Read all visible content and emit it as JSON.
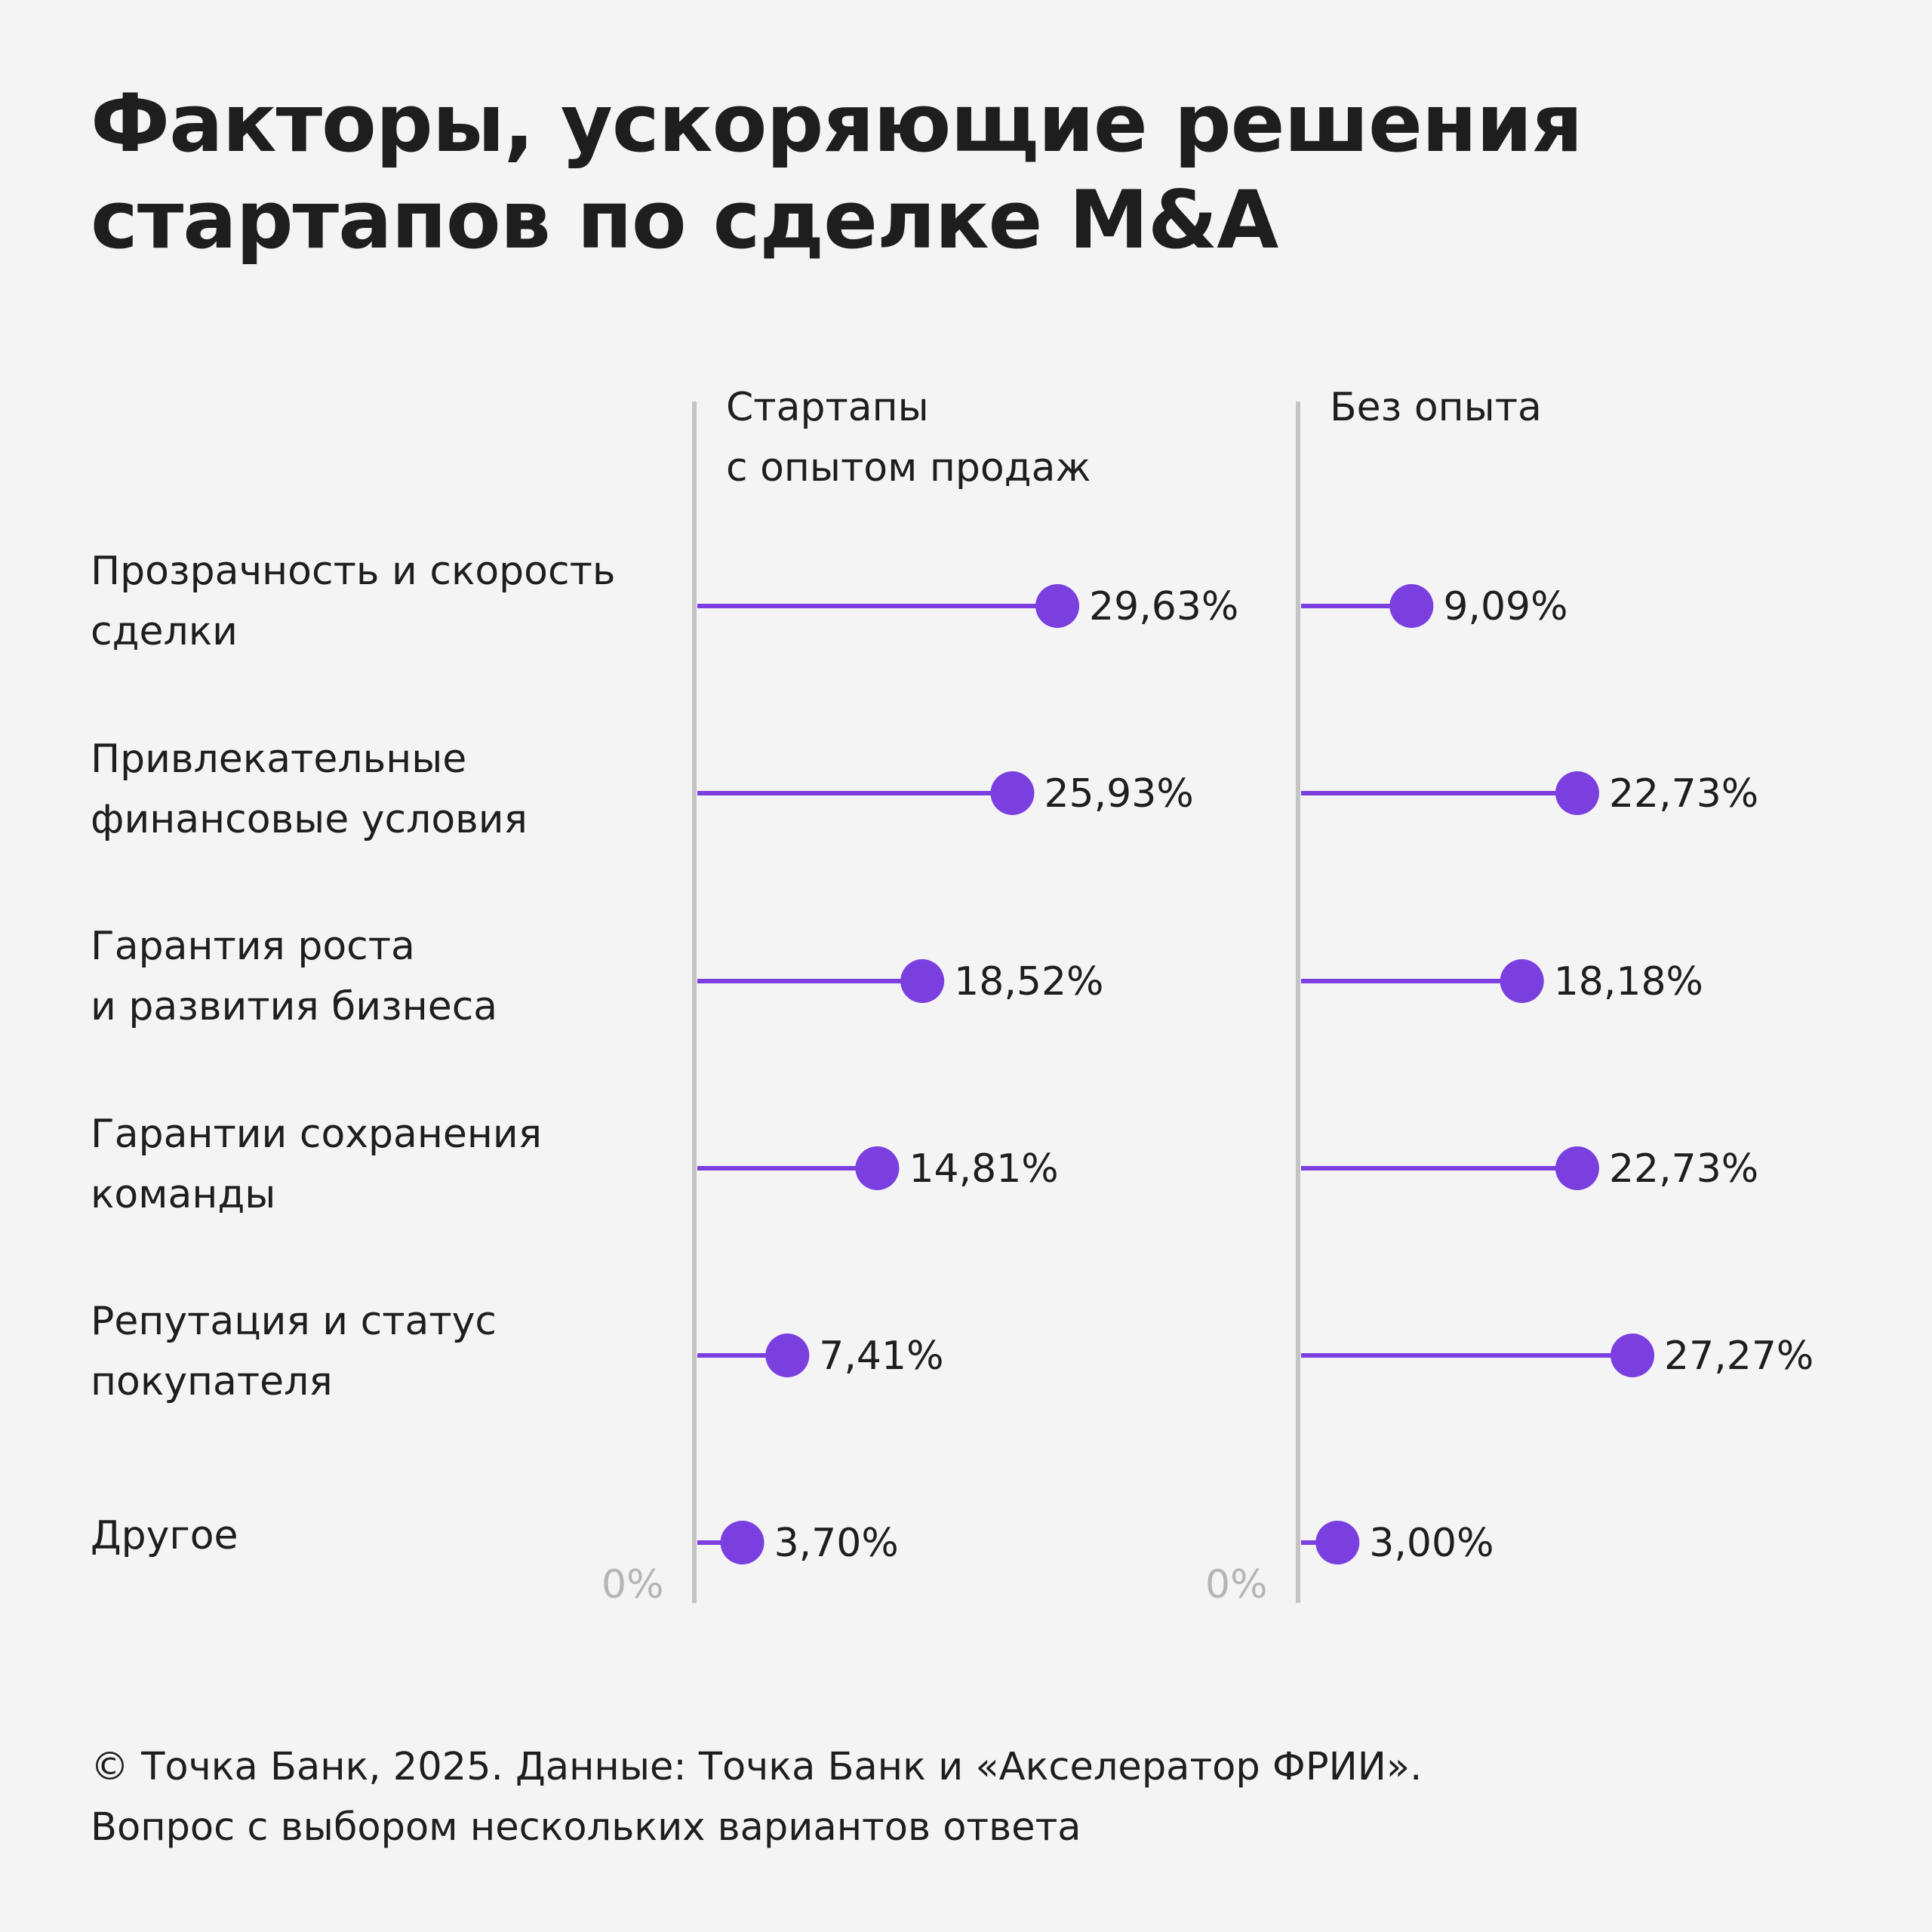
{
  "title": {
    "line1": "Факторы, ускоряющие решения",
    "line2": "стартапов по сделке M&A"
  },
  "colors": {
    "accent": "#7b3fe0",
    "axis": "#c4c4c4",
    "text": "#1e1e1e",
    "muted": "#b5b5b5",
    "background": "#f4f4f4"
  },
  "footer": {
    "line1": "© Точка Банк, 2025. Данные: Точка Банк и «Акселератор ФРИИ».",
    "line2": "Вопрос с выбором нескольких вариантов ответа"
  },
  "chart_data": {
    "type": "lollipop",
    "title": "Факторы, ускоряющие решения стартапов по сделке M&A",
    "axis_start_label": "0%",
    "xlim": [
      0,
      40
    ],
    "categories": [
      {
        "line1": "Прозрачность и скорость",
        "line2": "сделки"
      },
      {
        "line1": "Привлекательные",
        "line2": "финансовые условия"
      },
      {
        "line1": "Гарантия роста",
        "line2": "и развития бизнеса"
      },
      {
        "line1": "Гарантии сохранения",
        "line2": "команды"
      },
      {
        "line1": "Репутация и статус",
        "line2": "покупателя"
      },
      {
        "line1": "Другое",
        "line2": ""
      }
    ],
    "series": [
      {
        "name_line1": "Стартапы",
        "name_line2": "с опытом продаж",
        "values": [
          29.63,
          25.93,
          18.52,
          14.81,
          7.41,
          3.7
        ],
        "labels": [
          "29,63%",
          "25,93%",
          "18,52%",
          "14,81%",
          "7,41%",
          "3,70%"
        ]
      },
      {
        "name_line1": "Без опыта",
        "name_line2": "",
        "values": [
          9.09,
          22.73,
          18.18,
          22.73,
          27.27,
          3.0
        ],
        "labels": [
          "9,09%",
          "22,73%",
          "18,18%",
          "22,73%",
          "27,27%",
          "3,00%"
        ]
      }
    ]
  }
}
